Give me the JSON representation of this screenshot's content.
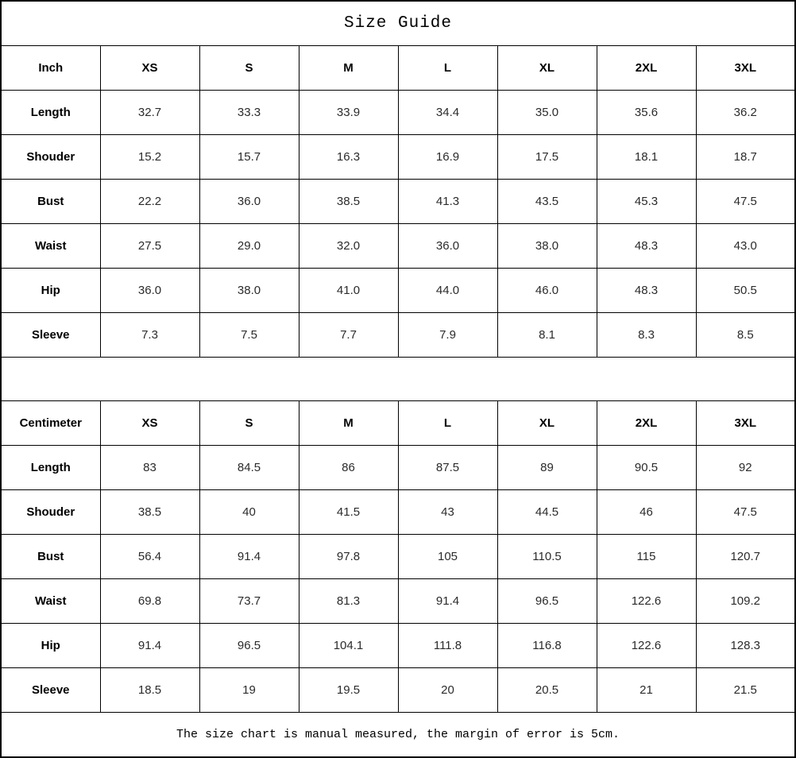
{
  "title": "Size Guide",
  "footer": "The size chart is manual measured, the margin of error is 5cm.",
  "tables": [
    {
      "unit_label": "Inch",
      "size_headers": [
        "XS",
        "S",
        "M",
        "L",
        "XL",
        "2XL",
        "3XL"
      ],
      "rows": [
        {
          "label": "Length",
          "values": [
            "32.7",
            "33.3",
            "33.9",
            "34.4",
            "35.0",
            "35.6",
            "36.2"
          ]
        },
        {
          "label": "Shouder",
          "values": [
            "15.2",
            "15.7",
            "16.3",
            "16.9",
            "17.5",
            "18.1",
            "18.7"
          ]
        },
        {
          "label": "Bust",
          "values": [
            "22.2",
            "36.0",
            "38.5",
            "41.3",
            "43.5",
            "45.3",
            "47.5"
          ]
        },
        {
          "label": "Waist",
          "values": [
            "27.5",
            "29.0",
            "32.0",
            "36.0",
            "38.0",
            "48.3",
            "43.0"
          ]
        },
        {
          "label": "Hip",
          "values": [
            "36.0",
            "38.0",
            "41.0",
            "44.0",
            "46.0",
            "48.3",
            "50.5"
          ]
        },
        {
          "label": "Sleeve",
          "values": [
            "7.3",
            "7.5",
            "7.7",
            "7.9",
            "8.1",
            "8.3",
            "8.5"
          ]
        }
      ]
    },
    {
      "unit_label": "Centimeter",
      "size_headers": [
        "XS",
        "S",
        "M",
        "L",
        "XL",
        "2XL",
        "3XL"
      ],
      "rows": [
        {
          "label": "Length",
          "values": [
            "83",
            "84.5",
            "86",
            "87.5",
            "89",
            "90.5",
            "92"
          ]
        },
        {
          "label": "Shouder",
          "values": [
            "38.5",
            "40",
            "41.5",
            "43",
            "44.5",
            "46",
            "47.5"
          ]
        },
        {
          "label": "Bust",
          "values": [
            "56.4",
            "91.4",
            "97.8",
            "105",
            "110.5",
            "115",
            "120.7"
          ]
        },
        {
          "label": "Waist",
          "values": [
            "69.8",
            "73.7",
            "81.3",
            "91.4",
            "96.5",
            "122.6",
            "109.2"
          ]
        },
        {
          "label": "Hip",
          "values": [
            "91.4",
            "96.5",
            "104.1",
            "111.8",
            "116.8",
            "122.6",
            "128.3"
          ]
        },
        {
          "label": "Sleeve",
          "values": [
            "18.5",
            "19",
            "19.5",
            "20",
            "20.5",
            "21",
            "21.5"
          ]
        }
      ]
    }
  ]
}
